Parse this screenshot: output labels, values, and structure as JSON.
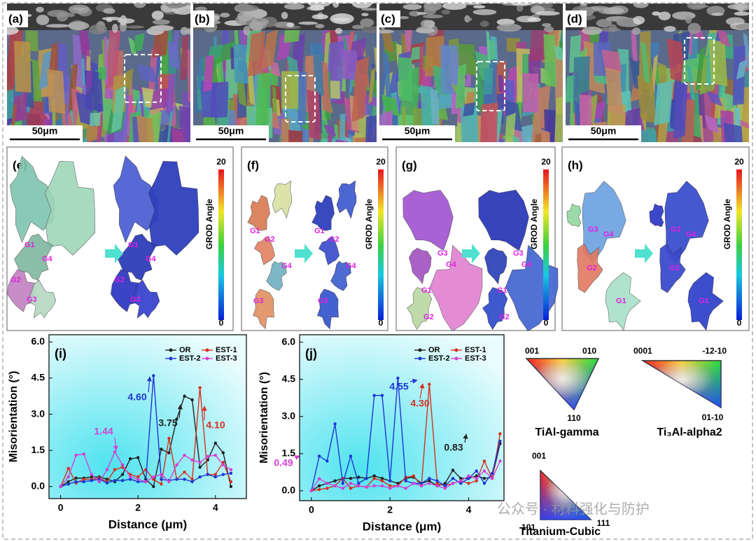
{
  "images": [
    {
      "label": "(a)",
      "scale": "50μm"
    },
    {
      "label": "(b)",
      "scale": "50μm"
    },
    {
      "label": "(c)",
      "scale": "50μm"
    },
    {
      "label": "(d)",
      "scale": "50μm"
    }
  ],
  "maps": [
    {
      "label": "(e)",
      "cbar_max": 20,
      "cbar_min": 0,
      "cbar_label": "GROD Angle",
      "grains": [
        "G1",
        "G4",
        "G2",
        "G3"
      ]
    },
    {
      "label": "(f)",
      "cbar_max": 20,
      "cbar_min": 0,
      "cbar_label": "GROD Angle",
      "grains": [
        "G1",
        "G2",
        "G4",
        "G3"
      ]
    },
    {
      "label": "(g)",
      "cbar_max": 20,
      "cbar_min": 0,
      "cbar_label": "GROD Angle",
      "grains": [
        "G4",
        "G3",
        "G1",
        "G2"
      ]
    },
    {
      "label": "(h)",
      "cbar_max": 20,
      "cbar_min": 0,
      "cbar_label": "GROD Angle",
      "grains": [
        "G3",
        "G4",
        "G2",
        "G1"
      ]
    }
  ],
  "chart_data": [
    {
      "type": "line",
      "label": "(i)",
      "x_label": "Distance (μm)",
      "y_label": "Misorientation (°)",
      "x": [
        0,
        0.2,
        0.4,
        0.6,
        0.8,
        1.0,
        1.2,
        1.4,
        1.6,
        1.8,
        2.0,
        2.2,
        2.4,
        2.6,
        2.8,
        3.0,
        3.2,
        3.4,
        3.6,
        3.8,
        4.0,
        4.2,
        4.4
      ],
      "series": [
        {
          "name": "OR",
          "color": "#222222",
          "values": [
            0,
            0.2,
            0.35,
            0.35,
            0.4,
            0.4,
            0.3,
            0.2,
            0.5,
            1.15,
            1.2,
            0.3,
            0,
            1.55,
            1.4,
            2.8,
            3.75,
            3.6,
            0.8,
            1.1,
            1.8,
            1.4,
            0
          ]
        },
        {
          "name": "EST-1",
          "color": "#d6301e",
          "values": [
            0,
            0.75,
            0.15,
            0.3,
            0.3,
            0.35,
            0.2,
            0.7,
            0.8,
            0.5,
            0.4,
            0.7,
            0.3,
            0.1,
            2.0,
            0.3,
            0.6,
            0.3,
            4.1,
            0.5,
            0.5,
            1.0,
            0.2
          ]
        },
        {
          "name": "EST-2",
          "color": "#1f35d4",
          "values": [
            0,
            0.1,
            0.2,
            0.2,
            0.25,
            0.3,
            0.15,
            0.25,
            0.25,
            0.3,
            0.2,
            0.2,
            4.6,
            0.3,
            0.25,
            0.3,
            0.3,
            0.2,
            0.4,
            0.5,
            0.4,
            0.5,
            0.55
          ]
        },
        {
          "name": "EST-3",
          "color": "#d63fd6",
          "values": [
            0,
            0.4,
            1.3,
            1.35,
            0.5,
            0.2,
            0.7,
            1.44,
            0.9,
            0.4,
            0.3,
            0.2,
            0.4,
            0.5,
            0.2,
            0.9,
            1.3,
            1.1,
            1.0,
            1.25,
            1.3,
            0.9,
            0.7
          ]
        }
      ],
      "xlim": [
        -0.3,
        4.8
      ],
      "ylim": [
        -0.5,
        6.3
      ],
      "xticks": [
        0,
        2,
        4
      ],
      "yticks": [
        {
          "value": 0,
          "label": "0.0"
        },
        1.5,
        {
          "value": 3,
          "label": "3.0"
        },
        4.5,
        {
          "value": 6,
          "label": "6.0"
        }
      ],
      "annotations": [
        {
          "text": "4.60",
          "color": "#1f35d4"
        },
        {
          "text": "3.75",
          "color": "#222222"
        },
        {
          "text": "4.10",
          "color": "#d6301e"
        },
        {
          "text": "1.44",
          "color": "#d63fd6"
        }
      ]
    },
    {
      "type": "line",
      "label": "(j)",
      "x_label": "Distance (μm)",
      "y_label": "Misorientation (°)",
      "x": [
        0,
        0.2,
        0.4,
        0.6,
        0.8,
        1.0,
        1.2,
        1.4,
        1.6,
        1.8,
        2.0,
        2.2,
        2.4,
        2.6,
        2.8,
        3.0,
        3.2,
        3.4,
        3.6,
        3.8,
        4.0,
        4.2,
        4.4,
        4.6,
        4.8
      ],
      "series": [
        {
          "name": "OR",
          "color": "#222222",
          "values": [
            0,
            0.2,
            0.3,
            0.4,
            0.5,
            0.5,
            0.55,
            0.5,
            0.6,
            0.5,
            0.4,
            0.3,
            0.5,
            0.55,
            0.3,
            0.4,
            0.2,
            0.3,
            0.83,
            0.5,
            0.5,
            0.6,
            0.5,
            0.55,
            1.9
          ]
        },
        {
          "name": "EST-1",
          "color": "#d6301e",
          "values": [
            0,
            0.05,
            0.1,
            0.2,
            0.5,
            0.1,
            0.2,
            0.15,
            0.5,
            0.4,
            0.2,
            0.2,
            0.55,
            0.6,
            0.2,
            4.3,
            0.3,
            0.2,
            0.3,
            0.4,
            0.3,
            0.4,
            1.2,
            0.5,
            2.3
          ]
        },
        {
          "name": "EST-2",
          "color": "#1f35d4",
          "values": [
            0,
            1.4,
            1.2,
            2.7,
            0.3,
            1.4,
            0.3,
            0.5,
            3.85,
            3.85,
            0.4,
            4.55,
            0.4,
            0.3,
            0.3,
            0.5,
            0.4,
            0.2,
            0.5,
            0.3,
            0.5,
            0.8,
            0.3,
            0.7,
            2.0
          ]
        },
        {
          "name": "EST-3",
          "color": "#d63fd6",
          "values": [
            0,
            0.49,
            0.3,
            0.2,
            0.1,
            0.3,
            0.2,
            0.15,
            0.2,
            0.2,
            0.1,
            0.2,
            0.1,
            0.3,
            0.2,
            0.3,
            0.2,
            0.1,
            0.3,
            0.4,
            0.6,
            0.5,
            0.8,
            0.5,
            1.2
          ]
        }
      ],
      "xlim": [
        -0.3,
        4.9
      ],
      "ylim": [
        -0.4,
        6.3
      ],
      "xticks": [
        0,
        2,
        4
      ],
      "yticks": [
        {
          "value": 0,
          "label": "0.0"
        },
        1.5,
        {
          "value": 3,
          "label": "3.0"
        },
        4.5,
        {
          "value": 6,
          "label": "6.0"
        }
      ],
      "annotations": [
        {
          "text": "4.55",
          "color": "#1f35d4"
        },
        {
          "text": "4.30",
          "color": "#d6301e"
        },
        {
          "text": "0.83",
          "color": "#222222"
        },
        {
          "text": "0.49",
          "color": "#d63fd6"
        }
      ]
    }
  ],
  "ipf": [
    {
      "corners": [
        "001",
        "010",
        "110"
      ],
      "name": "TiAl-gamma"
    },
    {
      "corners": [
        "0001",
        "-12-10",
        "01-10"
      ],
      "name": "Ti₃Al-alpha2"
    },
    {
      "corners": [
        "001",
        "101",
        "111"
      ],
      "name": "Titanium-Cubic"
    }
  ],
  "watermark": "公众号 · 材料强化与防护"
}
